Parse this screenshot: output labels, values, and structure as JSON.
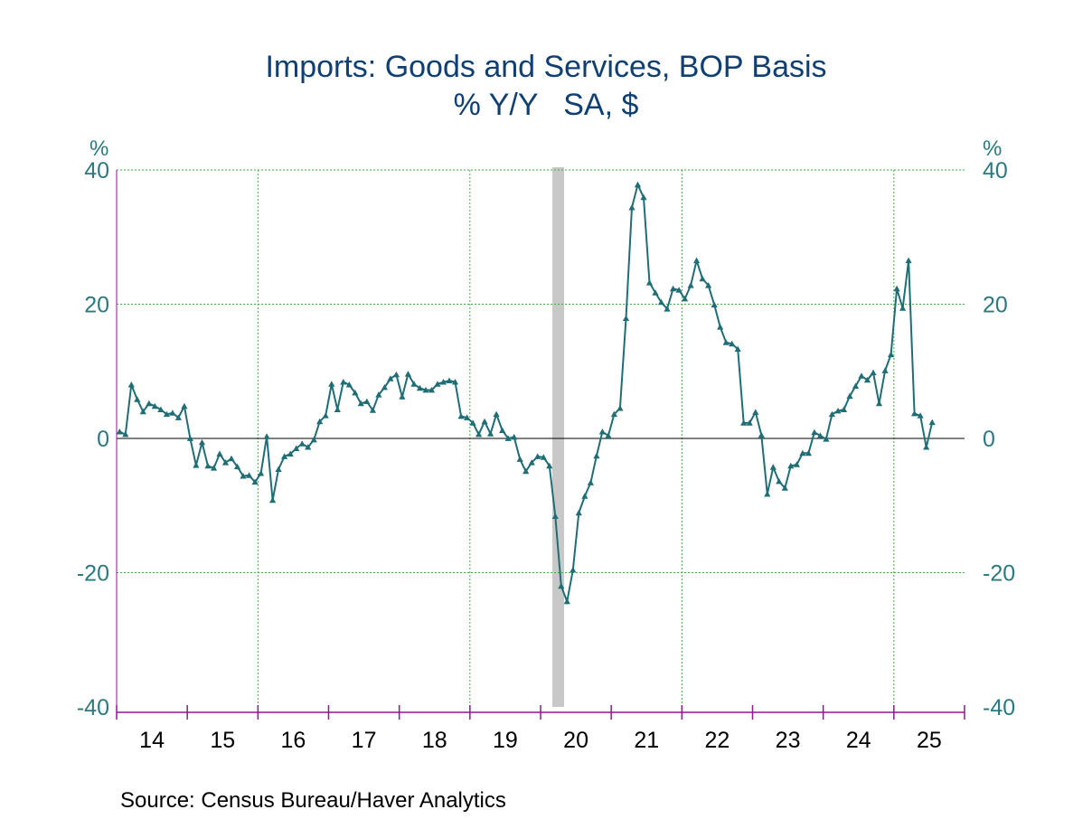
{
  "title": "Imports: Goods and Services, BOP Basis",
  "subtitle": "% Y/Y   SA, $",
  "source": "Source:  Census Bureau/Haver Analytics",
  "colors": {
    "title": "#0f3f73",
    "series": "#1f6e75",
    "tick_labels": "#2a7a80",
    "grid": "#3db53d",
    "axis": "#8b1a8b",
    "recession": "#c8c8c8"
  },
  "chart_data": {
    "type": "line",
    "title": "Imports: Goods and Services, BOP Basis",
    "subtitle": "% Y/Y   SA, $",
    "y_unit_left": "%",
    "y_unit_right": "%",
    "ylim": [
      -40,
      40
    ],
    "yticks": [
      40,
      20,
      0,
      -20,
      -40
    ],
    "ytick_labels": [
      "40",
      "20",
      "0",
      "-20",
      "-40"
    ],
    "x_start": "2014-01",
    "x_end": "2025-12",
    "year_labels": [
      "14",
      "15",
      "16",
      "17",
      "18",
      "19",
      "20",
      "21",
      "22",
      "23",
      "24",
      "25"
    ],
    "vertical_grid_years": [
      2016,
      2019,
      2022,
      2025
    ],
    "recession_band": {
      "start": "2020-03",
      "end": "2020-04"
    },
    "grid": true,
    "legend": "none",
    "series": [
      {
        "marker": "triangle",
        "x": [
          "2014-01",
          "2014-02",
          "2014-03",
          "2014-04",
          "2014-05",
          "2014-06",
          "2014-07",
          "2014-08",
          "2014-09",
          "2014-10",
          "2014-11",
          "2014-12",
          "2015-01",
          "2015-02",
          "2015-03",
          "2015-04",
          "2015-05",
          "2015-06",
          "2015-07",
          "2015-08",
          "2015-09",
          "2015-10",
          "2015-11",
          "2015-12",
          "2016-01",
          "2016-02",
          "2016-03",
          "2016-04",
          "2016-05",
          "2016-06",
          "2016-07",
          "2016-08",
          "2016-09",
          "2016-10",
          "2016-11",
          "2016-12",
          "2017-01",
          "2017-02",
          "2017-03",
          "2017-04",
          "2017-05",
          "2017-06",
          "2017-07",
          "2017-08",
          "2017-09",
          "2017-10",
          "2017-11",
          "2017-12",
          "2018-01",
          "2018-02",
          "2018-03",
          "2018-04",
          "2018-05",
          "2018-06",
          "2018-07",
          "2018-08",
          "2018-09",
          "2018-10",
          "2018-11",
          "2018-12",
          "2019-01",
          "2019-02",
          "2019-03",
          "2019-04",
          "2019-05",
          "2019-06",
          "2019-07",
          "2019-08",
          "2019-09",
          "2019-10",
          "2019-11",
          "2019-12",
          "2020-01",
          "2020-02",
          "2020-03",
          "2020-04",
          "2020-05",
          "2020-06",
          "2020-07",
          "2020-08",
          "2020-09",
          "2020-10",
          "2020-11",
          "2020-12",
          "2021-01",
          "2021-02",
          "2021-03",
          "2021-04",
          "2021-05",
          "2021-06",
          "2021-07",
          "2021-08",
          "2021-09",
          "2021-10",
          "2021-11",
          "2021-12",
          "2022-01",
          "2022-02",
          "2022-03",
          "2022-04",
          "2022-05",
          "2022-06",
          "2022-07",
          "2022-08",
          "2022-09",
          "2022-10",
          "2022-11",
          "2022-12",
          "2023-01",
          "2023-02",
          "2023-03",
          "2023-04",
          "2023-05",
          "2023-06",
          "2023-07",
          "2023-08",
          "2023-09",
          "2023-10",
          "2023-11",
          "2023-12",
          "2024-01",
          "2024-02",
          "2024-03",
          "2024-04",
          "2024-05",
          "2024-06",
          "2024-07",
          "2024-08",
          "2024-09",
          "2024-10",
          "2024-11",
          "2024-12",
          "2025-01",
          "2025-02",
          "2025-03",
          "2025-04",
          "2025-05",
          "2025-06",
          "2025-07"
        ],
        "values": [
          1.0,
          0.6,
          8.0,
          5.8,
          4.0,
          5.2,
          4.8,
          4.3,
          3.6,
          3.8,
          3.1,
          4.8,
          0.0,
          -4.0,
          -0.6,
          -4.1,
          -4.4,
          -2.3,
          -3.6,
          -3.0,
          -4.2,
          -5.6,
          -5.5,
          -6.5,
          -5.2,
          0.3,
          -9.2,
          -4.6,
          -2.7,
          -2.3,
          -1.5,
          -0.8,
          -1.3,
          -0.2,
          2.5,
          3.4,
          8.1,
          4.3,
          8.4,
          8.0,
          6.8,
          5.2,
          5.5,
          4.2,
          6.5,
          7.6,
          8.9,
          9.5,
          6.2,
          9.6,
          8.1,
          7.5,
          7.2,
          7.2,
          8.1,
          8.4,
          8.6,
          8.4,
          3.3,
          3.1,
          2.3,
          0.6,
          2.5,
          0.7,
          3.6,
          1.2,
          0.0,
          0.2,
          -3.1,
          -4.9,
          -3.6,
          -2.7,
          -2.8,
          -4.1,
          -11.6,
          -22.0,
          -24.3,
          -19.6,
          -11.1,
          -8.6,
          -6.6,
          -2.6,
          1.0,
          0.4,
          3.6,
          4.5,
          17.9,
          34.4,
          37.8,
          35.9,
          23.2,
          21.7,
          20.3,
          19.3,
          22.3,
          22.1,
          20.8,
          22.8,
          26.5,
          23.8,
          22.8,
          19.9,
          16.6,
          14.3,
          14.1,
          13.3,
          2.3,
          2.3,
          3.9,
          0.5,
          -8.3,
          -4.3,
          -6.4,
          -7.4,
          -4.1,
          -3.9,
          -2.2,
          -2.2,
          0.9,
          0.4,
          -0.1,
          3.6,
          4.1,
          4.3,
          6.3,
          7.8,
          9.3,
          8.7,
          9.8,
          5.2,
          10.1,
          12.5,
          22.3,
          19.4,
          26.5,
          3.7,
          3.4,
          -1.3,
          2.4
        ]
      }
    ]
  }
}
